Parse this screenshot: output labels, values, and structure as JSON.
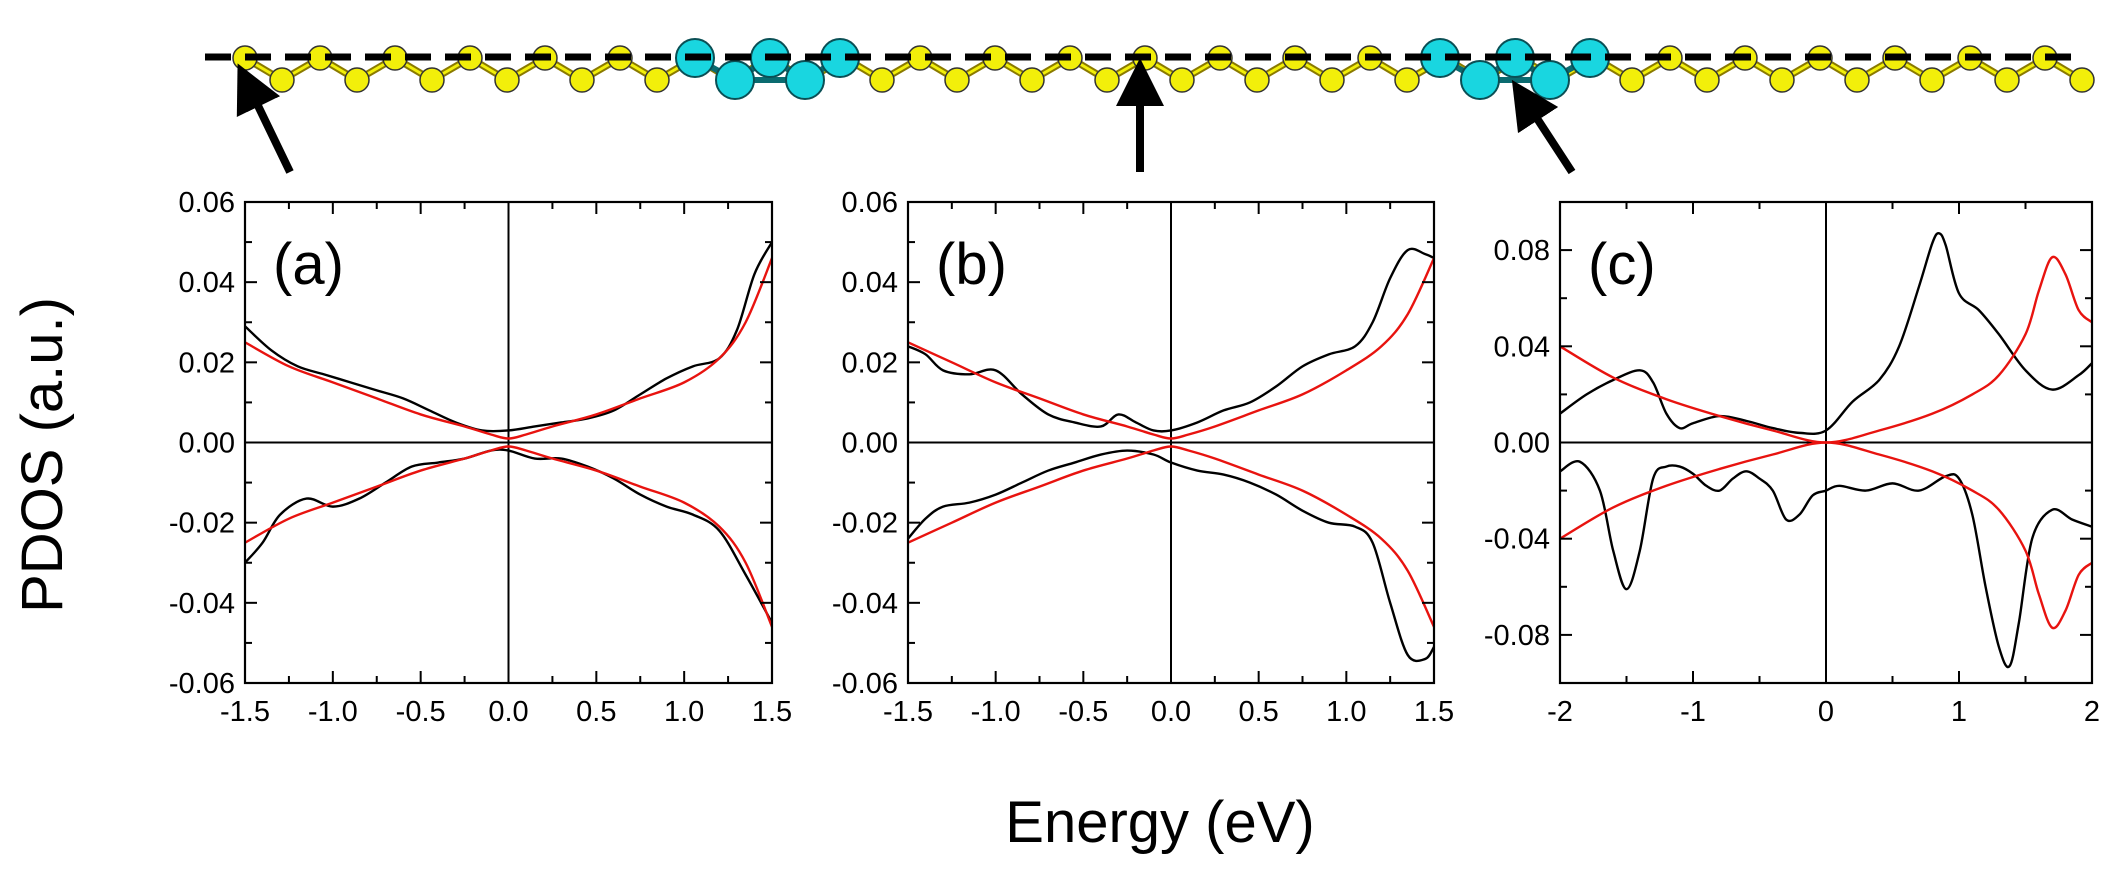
{
  "figure": {
    "ylabel": "PDOS (a.u.)",
    "xlabel": "Energy (eV)"
  },
  "colors": {
    "curve_black": "#000000",
    "curve_red": "#e8130f",
    "atom_yellow": "#f2ef0a",
    "atom_cyan": "#19d6e0"
  },
  "structure": {
    "description_icon": "atomic-chain-icon",
    "arrows": [
      "arrow-to-panel-a",
      "arrow-to-panel-b",
      "arrow-to-panel-c"
    ]
  },
  "chart_data": [
    {
      "type": "line",
      "panel_label": "(a)",
      "xlim": [
        -1.5,
        1.5
      ],
      "ylim": [
        -0.06,
        0.06
      ],
      "xticks": [
        -1.5,
        -1.0,
        -0.5,
        0.0,
        0.5,
        1.0,
        1.5
      ],
      "xtick_labels": [
        "-1.5",
        "-1.0",
        "-0.5",
        "0.0",
        "0.5",
        "1.0",
        "1.5"
      ],
      "yticks": [
        -0.06,
        -0.04,
        -0.02,
        0.0,
        0.02,
        0.04,
        0.06
      ],
      "ytick_labels": [
        "-0.06",
        "-0.04",
        "-0.02",
        "0.00",
        "0.02",
        "0.04",
        "0.06"
      ],
      "series": [
        {
          "name": "black-up",
          "color": "#000000",
          "x": [
            -1.5,
            -1.35,
            -1.2,
            -1.05,
            -0.9,
            -0.75,
            -0.6,
            -0.45,
            -0.3,
            -0.15,
            0.0,
            0.15,
            0.3,
            0.45,
            0.6,
            0.75,
            0.9,
            1.05,
            1.2,
            1.3,
            1.4,
            1.5
          ],
          "y": [
            0.029,
            0.023,
            0.019,
            0.017,
            0.015,
            0.013,
            0.011,
            0.008,
            0.005,
            0.003,
            0.003,
            0.004,
            0.005,
            0.006,
            0.008,
            0.012,
            0.016,
            0.019,
            0.021,
            0.028,
            0.042,
            0.05
          ]
        },
        {
          "name": "red-up",
          "color": "#e8130f",
          "x": [
            -1.5,
            -1.25,
            -1.0,
            -0.75,
            -0.5,
            -0.25,
            -0.1,
            0.0,
            0.1,
            0.25,
            0.5,
            0.75,
            1.0,
            1.2,
            1.35,
            1.5
          ],
          "y": [
            0.025,
            0.019,
            0.015,
            0.011,
            0.007,
            0.004,
            0.002,
            0.001,
            0.002,
            0.004,
            0.007,
            0.011,
            0.015,
            0.021,
            0.03,
            0.046
          ]
        },
        {
          "name": "black-down",
          "color": "#000000",
          "x": [
            -1.5,
            -1.4,
            -1.3,
            -1.15,
            -1.0,
            -0.85,
            -0.7,
            -0.55,
            -0.4,
            -0.25,
            -0.1,
            0.0,
            0.15,
            0.3,
            0.45,
            0.6,
            0.75,
            0.9,
            1.05,
            1.2,
            1.35,
            1.5
          ],
          "y": [
            -0.03,
            -0.025,
            -0.018,
            -0.014,
            -0.016,
            -0.014,
            -0.01,
            -0.006,
            -0.005,
            -0.004,
            -0.002,
            -0.002,
            -0.004,
            -0.004,
            -0.006,
            -0.009,
            -0.013,
            -0.016,
            -0.018,
            -0.022,
            -0.033,
            -0.045
          ]
        },
        {
          "name": "red-down",
          "color": "#e8130f",
          "x": [
            -1.5,
            -1.25,
            -1.0,
            -0.75,
            -0.5,
            -0.25,
            -0.1,
            0.0,
            0.1,
            0.25,
            0.5,
            0.75,
            1.0,
            1.2,
            1.35,
            1.5
          ],
          "y": [
            -0.025,
            -0.019,
            -0.015,
            -0.011,
            -0.007,
            -0.004,
            -0.002,
            -0.001,
            -0.002,
            -0.004,
            -0.007,
            -0.011,
            -0.015,
            -0.021,
            -0.03,
            -0.046
          ]
        }
      ]
    },
    {
      "type": "line",
      "panel_label": "(b)",
      "xlim": [
        -1.5,
        1.5
      ],
      "ylim": [
        -0.06,
        0.06
      ],
      "xticks": [
        -1.5,
        -1.0,
        -0.5,
        0.0,
        0.5,
        1.0,
        1.5
      ],
      "xtick_labels": [
        "-1.5",
        "-1.0",
        "-0.5",
        "0.0",
        "0.5",
        "1.0",
        "1.5"
      ],
      "yticks": [
        -0.06,
        -0.04,
        -0.02,
        0.0,
        0.02,
        0.04,
        0.06
      ],
      "ytick_labels": [
        "-0.06",
        "-0.04",
        "-0.02",
        "0.00",
        "0.02",
        "0.04",
        "0.06"
      ],
      "series": [
        {
          "name": "black-up",
          "color": "#000000",
          "x": [
            -1.5,
            -1.4,
            -1.3,
            -1.15,
            -1.0,
            -0.85,
            -0.7,
            -0.55,
            -0.4,
            -0.3,
            -0.2,
            -0.1,
            0.0,
            0.15,
            0.3,
            0.45,
            0.6,
            0.75,
            0.9,
            1.05,
            1.15,
            1.25,
            1.35,
            1.45,
            1.5
          ],
          "y": [
            0.024,
            0.022,
            0.018,
            0.017,
            0.018,
            0.012,
            0.007,
            0.005,
            0.004,
            0.007,
            0.005,
            0.003,
            0.003,
            0.005,
            0.008,
            0.01,
            0.014,
            0.019,
            0.022,
            0.024,
            0.03,
            0.041,
            0.048,
            0.047,
            0.046
          ]
        },
        {
          "name": "red-up",
          "color": "#e8130f",
          "x": [
            -1.5,
            -1.25,
            -1.0,
            -0.75,
            -0.5,
            -0.25,
            -0.1,
            0.0,
            0.1,
            0.25,
            0.5,
            0.75,
            1.0,
            1.2,
            1.35,
            1.5
          ],
          "y": [
            0.025,
            0.02,
            0.015,
            0.011,
            0.007,
            0.004,
            0.002,
            0.001,
            0.002,
            0.004,
            0.008,
            0.012,
            0.018,
            0.024,
            0.032,
            0.046
          ]
        },
        {
          "name": "black-down",
          "color": "#000000",
          "x": [
            -1.5,
            -1.4,
            -1.3,
            -1.15,
            -1.0,
            -0.85,
            -0.7,
            -0.55,
            -0.4,
            -0.25,
            -0.1,
            0.0,
            0.15,
            0.3,
            0.45,
            0.6,
            0.75,
            0.9,
            1.05,
            1.15,
            1.25,
            1.35,
            1.45,
            1.5
          ],
          "y": [
            -0.024,
            -0.019,
            -0.016,
            -0.015,
            -0.013,
            -0.01,
            -0.007,
            -0.005,
            -0.003,
            -0.002,
            -0.003,
            -0.005,
            -0.007,
            -0.008,
            -0.01,
            -0.013,
            -0.017,
            -0.02,
            -0.021,
            -0.025,
            -0.04,
            -0.053,
            -0.054,
            -0.051
          ]
        },
        {
          "name": "red-down",
          "color": "#e8130f",
          "x": [
            -1.5,
            -1.25,
            -1.0,
            -0.75,
            -0.5,
            -0.25,
            -0.1,
            0.0,
            0.1,
            0.25,
            0.5,
            0.75,
            1.0,
            1.2,
            1.35,
            1.5
          ],
          "y": [
            -0.025,
            -0.02,
            -0.015,
            -0.011,
            -0.007,
            -0.004,
            -0.002,
            -0.001,
            -0.002,
            -0.004,
            -0.008,
            -0.012,
            -0.018,
            -0.024,
            -0.032,
            -0.046
          ]
        }
      ]
    },
    {
      "type": "line",
      "panel_label": "(c)",
      "xlim": [
        -2,
        2
      ],
      "ylim": [
        -0.1,
        0.1
      ],
      "xticks": [
        -2,
        -1,
        0,
        1,
        2
      ],
      "xtick_labels": [
        "-2",
        "-1",
        "0",
        "1",
        "2"
      ],
      "yticks": [
        -0.08,
        -0.04,
        0.0,
        0.04,
        0.08
      ],
      "ytick_labels": [
        "-0.08",
        "-0.04",
        "0.00",
        "0.04",
        "0.08"
      ],
      "series": [
        {
          "name": "black-up",
          "color": "#000000",
          "x": [
            -2.0,
            -1.8,
            -1.6,
            -1.4,
            -1.3,
            -1.2,
            -1.1,
            -1.0,
            -0.8,
            -0.6,
            -0.4,
            -0.2,
            0.0,
            0.2,
            0.4,
            0.55,
            0.7,
            0.8,
            0.85,
            0.9,
            1.0,
            1.15,
            1.3,
            1.5,
            1.7,
            1.9,
            2.0
          ],
          "y": [
            0.012,
            0.02,
            0.026,
            0.03,
            0.025,
            0.012,
            0.006,
            0.008,
            0.011,
            0.009,
            0.006,
            0.004,
            0.005,
            0.017,
            0.026,
            0.04,
            0.065,
            0.083,
            0.087,
            0.082,
            0.062,
            0.055,
            0.045,
            0.03,
            0.022,
            0.028,
            0.033
          ]
        },
        {
          "name": "red-up",
          "color": "#e8130f",
          "x": [
            -2.0,
            -1.6,
            -1.2,
            -0.8,
            -0.4,
            0.0,
            0.4,
            0.8,
            1.1,
            1.3,
            1.5,
            1.6,
            1.7,
            1.8,
            1.9,
            2.0
          ],
          "y": [
            0.04,
            0.027,
            0.018,
            0.011,
            0.005,
            0.0,
            0.005,
            0.012,
            0.02,
            0.028,
            0.045,
            0.063,
            0.077,
            0.07,
            0.055,
            0.05
          ]
        },
        {
          "name": "black-down",
          "color": "#000000",
          "x": [
            -2.0,
            -1.85,
            -1.7,
            -1.6,
            -1.5,
            -1.4,
            -1.3,
            -1.2,
            -1.1,
            -1.0,
            -0.9,
            -0.8,
            -0.7,
            -0.6,
            -0.5,
            -0.4,
            -0.3,
            -0.2,
            -0.1,
            0.0,
            0.1,
            0.3,
            0.5,
            0.7,
            0.9,
            1.0,
            1.1,
            1.2,
            1.3,
            1.38,
            1.45,
            1.55,
            1.7,
            1.85,
            2.0
          ],
          "y": [
            -0.012,
            -0.008,
            -0.02,
            -0.045,
            -0.061,
            -0.045,
            -0.015,
            -0.01,
            -0.01,
            -0.013,
            -0.018,
            -0.02,
            -0.015,
            -0.012,
            -0.015,
            -0.02,
            -0.032,
            -0.03,
            -0.022,
            -0.02,
            -0.018,
            -0.02,
            -0.017,
            -0.02,
            -0.014,
            -0.015,
            -0.03,
            -0.06,
            -0.085,
            -0.093,
            -0.075,
            -0.04,
            -0.028,
            -0.032,
            -0.035
          ]
        },
        {
          "name": "red-down",
          "color": "#e8130f",
          "x": [
            -2.0,
            -1.6,
            -1.2,
            -0.8,
            -0.4,
            0.0,
            0.4,
            0.8,
            1.1,
            1.3,
            1.5,
            1.6,
            1.7,
            1.8,
            1.9,
            2.0
          ],
          "y": [
            -0.04,
            -0.027,
            -0.018,
            -0.011,
            -0.005,
            0.0,
            -0.005,
            -0.012,
            -0.02,
            -0.028,
            -0.045,
            -0.063,
            -0.077,
            -0.07,
            -0.055,
            -0.05
          ]
        }
      ]
    }
  ]
}
